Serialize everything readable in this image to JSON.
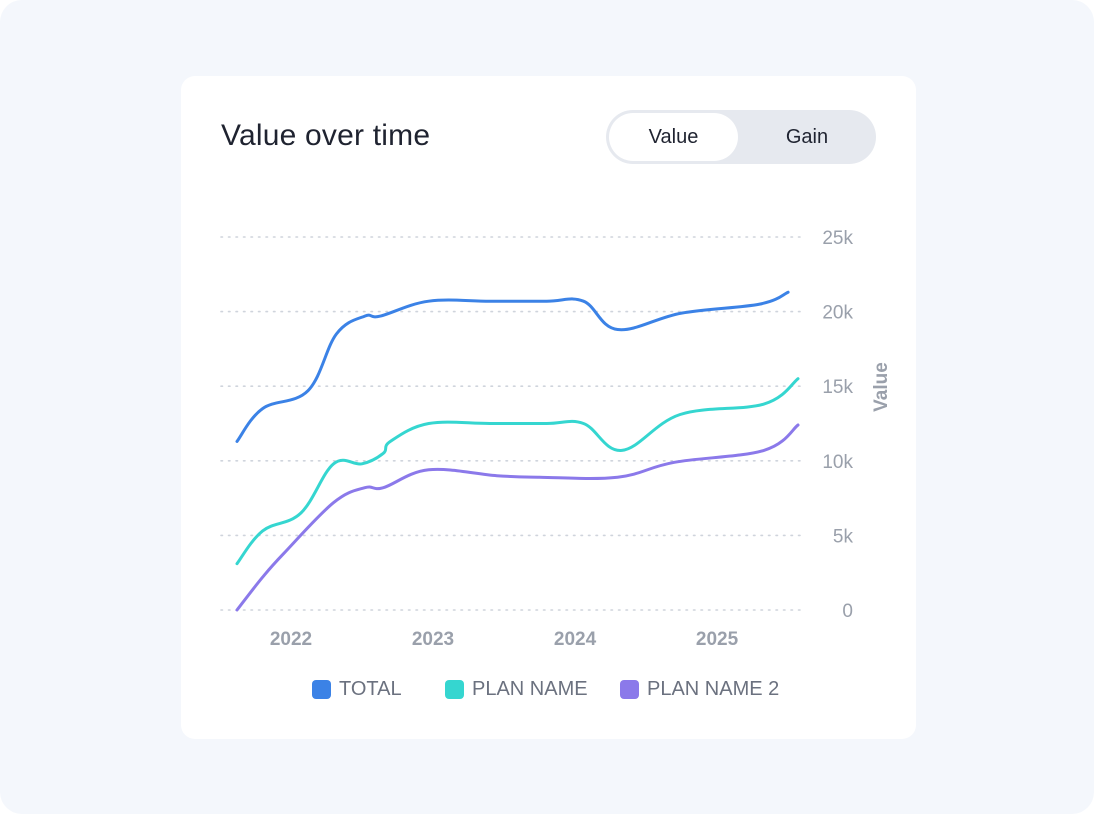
{
  "card": {
    "title": "Value over time",
    "toggle": {
      "options": [
        "Value",
        "Gain"
      ],
      "selected": "Value"
    }
  },
  "colors": {
    "total": "#3b82e6",
    "plan_name": "#35d6d0",
    "plan_name_2": "#8b79ea",
    "grid": "#cfd4dc",
    "tick": "#9aa0ab"
  },
  "chart_data": {
    "type": "line",
    "ylabel": "Value",
    "ylim": [
      0,
      25000
    ],
    "yticks": [
      0,
      5000,
      10000,
      15000,
      20000,
      25000
    ],
    "ytick_labels": [
      "0",
      "5k",
      "10k",
      "15k",
      "20k",
      "25k"
    ],
    "xlim": [
      2021.6,
      2025.57
    ],
    "xticks": [
      2022,
      2023,
      2024,
      2025
    ],
    "xtick_labels": [
      "2022",
      "2023",
      "2024",
      "2025"
    ],
    "grid": true,
    "legend_position": "bottom",
    "series": [
      {
        "name": "TOTAL",
        "color": "#3b82e6",
        "points": [
          [
            2021.62,
            11300
          ],
          [
            2021.8,
            13500
          ],
          [
            2022.12,
            14700
          ],
          [
            2022.32,
            18500
          ],
          [
            2022.52,
            19700
          ],
          [
            2022.63,
            19700
          ],
          [
            2022.97,
            20700
          ],
          [
            2023.4,
            20700
          ],
          [
            2023.8,
            20700
          ],
          [
            2024.06,
            20700
          ],
          [
            2024.3,
            18800
          ],
          [
            2024.75,
            19900
          ],
          [
            2025.3,
            20500
          ],
          [
            2025.5,
            21300
          ]
        ]
      },
      {
        "name": "PLAN NAME",
        "color": "#35d6d0",
        "points": [
          [
            2021.62,
            3100
          ],
          [
            2021.8,
            5300
          ],
          [
            2022.07,
            6500
          ],
          [
            2022.3,
            9800
          ],
          [
            2022.5,
            9800
          ],
          [
            2022.65,
            10500
          ],
          [
            2022.7,
            11300
          ],
          [
            2022.97,
            12500
          ],
          [
            2023.4,
            12500
          ],
          [
            2023.8,
            12500
          ],
          [
            2024.06,
            12500
          ],
          [
            2024.33,
            10700
          ],
          [
            2024.74,
            13100
          ],
          [
            2025.33,
            13800
          ],
          [
            2025.57,
            15500
          ]
        ]
      },
      {
        "name": "PLAN NAME 2",
        "color": "#8b79ea",
        "points": [
          [
            2021.62,
            0
          ],
          [
            2021.8,
            2200
          ],
          [
            2021.95,
            3800
          ],
          [
            2022.3,
            7200
          ],
          [
            2022.52,
            8200
          ],
          [
            2022.65,
            8200
          ],
          [
            2022.97,
            9400
          ],
          [
            2023.45,
            9000
          ],
          [
            2023.75,
            8900
          ],
          [
            2024.3,
            8900
          ],
          [
            2024.7,
            9900
          ],
          [
            2025.33,
            10700
          ],
          [
            2025.57,
            12400
          ]
        ]
      }
    ]
  }
}
